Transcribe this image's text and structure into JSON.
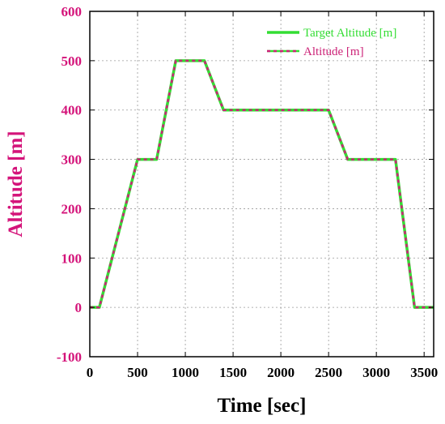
{
  "chart_data": {
    "type": "line",
    "xlabel": "Time [sec]",
    "ylabel": "Altitude [m]",
    "xlim": [
      0,
      3600
    ],
    "ylim": [
      -100,
      600
    ],
    "xticks": [
      0,
      500,
      1000,
      1500,
      2000,
      2500,
      3000,
      3500
    ],
    "yticks": [
      -100,
      0,
      100,
      200,
      300,
      400,
      500,
      600
    ],
    "grid": true,
    "legend_position": "top-right",
    "colors": {
      "target": "#33dd33",
      "altitude": "#cc2277",
      "ytick": "#d4147a",
      "ylabel": "#d4147a"
    },
    "series": [
      {
        "name": "Target Altitude [m]",
        "style": "solid",
        "x": [
          0,
          100,
          500,
          700,
          900,
          1200,
          1400,
          2500,
          2700,
          3200,
          3400,
          3600
        ],
        "y": [
          0,
          0,
          300,
          300,
          500,
          500,
          400,
          400,
          300,
          300,
          0,
          0
        ]
      },
      {
        "name": "Altitude [m]",
        "style": "dashed",
        "x": [
          0,
          100,
          500,
          700,
          900,
          1200,
          1400,
          2500,
          2700,
          3200,
          3400,
          3600
        ],
        "y": [
          0,
          0,
          300,
          300,
          500,
          500,
          400,
          400,
          300,
          300,
          0,
          0
        ]
      }
    ]
  }
}
